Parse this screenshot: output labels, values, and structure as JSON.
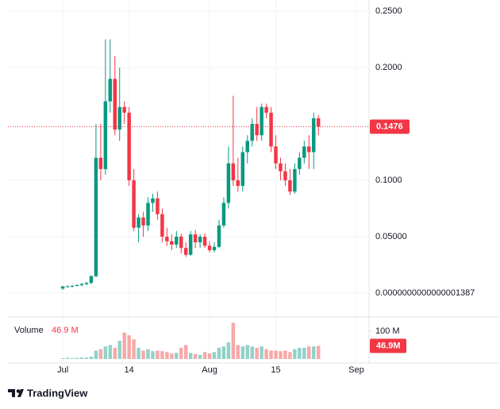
{
  "chart_data": {
    "type": "candlestick",
    "x": [
      0,
      1,
      2,
      3,
      4,
      5,
      6,
      7,
      8,
      9,
      10,
      11,
      12,
      13,
      14,
      15,
      16,
      17,
      18,
      19,
      20,
      21,
      22,
      23,
      24,
      25,
      26,
      27,
      28,
      29,
      30,
      31,
      32,
      33,
      34,
      35,
      36,
      37,
      38,
      39,
      40,
      41,
      42,
      43,
      44,
      45,
      46,
      47,
      48,
      49,
      50,
      51,
      52,
      53,
      54
    ],
    "open": [
      0.004,
      0.006,
      0.006,
      0.0065,
      0.007,
      0.008,
      0.009,
      0.015,
      0.12,
      0.11,
      0.17,
      0.19,
      0.145,
      0.165,
      0.16,
      0.1,
      0.058,
      0.067,
      0.06,
      0.08,
      0.084,
      0.07,
      0.05,
      0.046,
      0.043,
      0.05,
      0.04,
      0.034,
      0.052,
      0.045,
      0.05,
      0.042,
      0.038,
      0.041,
      0.06,
      0.08,
      0.115,
      0.1,
      0.095,
      0.125,
      0.135,
      0.15,
      0.14,
      0.165,
      0.16,
      0.13,
      0.115,
      0.108,
      0.1,
      0.09,
      0.11,
      0.12,
      0.13,
      0.125,
      0.155
    ],
    "high": [
      0.006,
      0.007,
      0.007,
      0.008,
      0.009,
      0.01,
      0.016,
      0.15,
      0.15,
      0.225,
      0.225,
      0.21,
      0.2,
      0.17,
      0.165,
      0.11,
      0.07,
      0.072,
      0.085,
      0.088,
      0.09,
      0.075,
      0.058,
      0.052,
      0.055,
      0.053,
      0.045,
      0.055,
      0.056,
      0.052,
      0.053,
      0.046,
      0.045,
      0.065,
      0.085,
      0.13,
      0.175,
      0.12,
      0.13,
      0.14,
      0.155,
      0.165,
      0.168,
      0.168,
      0.165,
      0.14,
      0.12,
      0.115,
      0.11,
      0.115,
      0.125,
      0.135,
      0.14,
      0.16,
      0.158
    ],
    "low": [
      0.003,
      0.005,
      0.005,
      0.006,
      0.006,
      0.007,
      0.008,
      0.014,
      0.1,
      0.105,
      0.16,
      0.14,
      0.135,
      0.15,
      0.095,
      0.055,
      0.045,
      0.05,
      0.055,
      0.072,
      0.065,
      0.045,
      0.042,
      0.038,
      0.04,
      0.035,
      0.032,
      0.033,
      0.04,
      0.04,
      0.04,
      0.036,
      0.036,
      0.04,
      0.058,
      0.075,
      0.095,
      0.09,
      0.09,
      0.115,
      0.13,
      0.135,
      0.135,
      0.155,
      0.125,
      0.11,
      0.1,
      0.095,
      0.087,
      0.088,
      0.105,
      0.115,
      0.11,
      0.11,
      0.14
    ],
    "close": [
      0.006,
      0.006,
      0.0065,
      0.007,
      0.008,
      0.009,
      0.015,
      0.12,
      0.11,
      0.17,
      0.19,
      0.145,
      0.165,
      0.16,
      0.1,
      0.058,
      0.067,
      0.06,
      0.08,
      0.084,
      0.07,
      0.05,
      0.046,
      0.043,
      0.05,
      0.04,
      0.034,
      0.052,
      0.045,
      0.05,
      0.042,
      0.038,
      0.041,
      0.06,
      0.08,
      0.115,
      0.1,
      0.095,
      0.125,
      0.135,
      0.15,
      0.14,
      0.165,
      0.16,
      0.13,
      0.115,
      0.108,
      0.1,
      0.09,
      0.11,
      0.12,
      0.13,
      0.125,
      0.155,
      0.1476
    ],
    "up_color": "#089981",
    "down_color": "#f23645",
    "xlim": [
      -11.6,
      64.7
    ],
    "xticks": [
      {
        "value": 0,
        "label": "Jul"
      },
      14,
      {
        "value": 31,
        "label": "Aug"
      },
      {
        "value": 45,
        "label": "15"
      },
      {
        "value": 62,
        "label": "Sep"
      }
    ],
    "ylim": [
      -0.0204,
      0.2599
    ],
    "yticks": [
      {
        "value": 1.387e-16,
        "label": "0.0000000000000001387"
      },
      {
        "value": 0.05,
        "label": "0.05000"
      },
      {
        "value": 0.1,
        "label": "0.1000"
      },
      {
        "value": 0.2,
        "label": "0.2000"
      },
      {
        "value": 0.25,
        "label": "0.2500"
      }
    ],
    "last_price_label": "0.1476",
    "volume": {
      "name": "Volume",
      "values": [
        3,
        4,
        3,
        4,
        5,
        5,
        8,
        30,
        35,
        45,
        50,
        40,
        65,
        95,
        85,
        70,
        40,
        30,
        35,
        28,
        30,
        28,
        25,
        20,
        22,
        40,
        50,
        22,
        18,
        15,
        25,
        20,
        25,
        40,
        45,
        60,
        130,
        50,
        45,
        50,
        45,
        40,
        45,
        35,
        30,
        30,
        28,
        30,
        25,
        35,
        40,
        40,
        45,
        45,
        46.9
      ],
      "up_color": "#92d2c8",
      "down_color": "#f7a9a7",
      "ylim": [
        0,
        148
      ],
      "yticks": [
        {
          "value": 100,
          "label": "100 M"
        }
      ],
      "last_label": "46.9 M",
      "last_tag": "46.9M"
    },
    "brand": "TradingView"
  }
}
